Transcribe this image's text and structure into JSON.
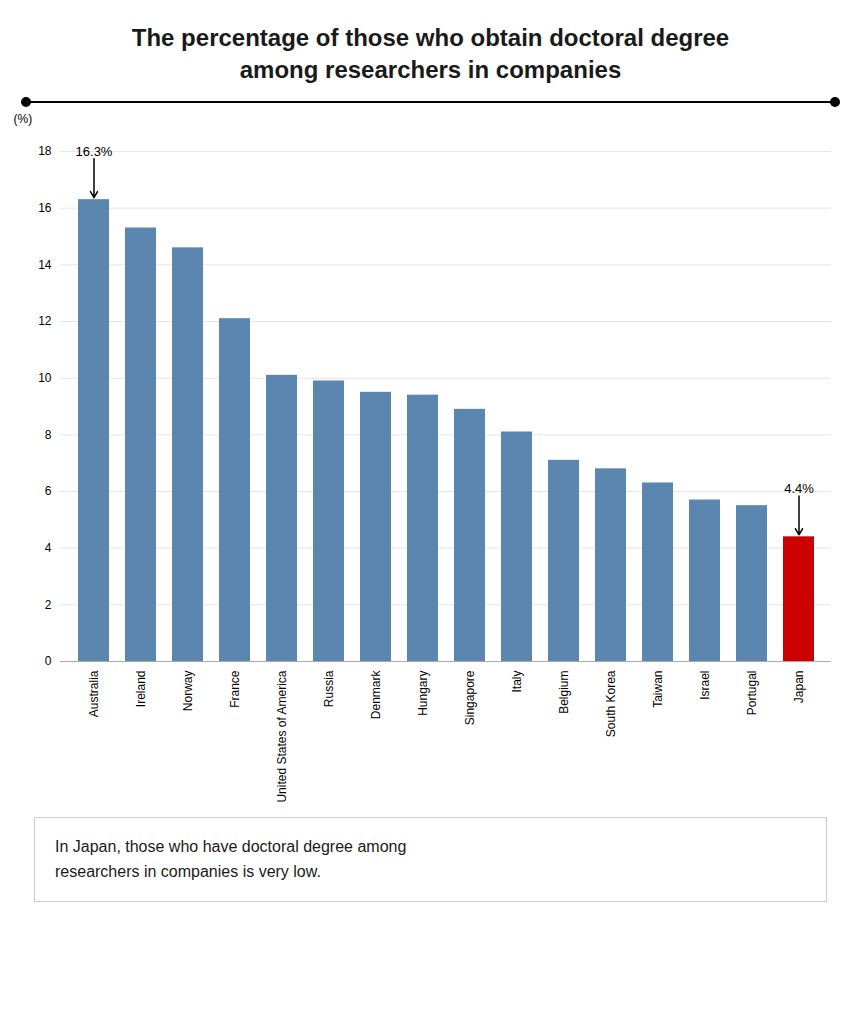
{
  "chart_data": {
    "type": "bar",
    "title": "The percentage of those who obtain doctoral degree\namong researchers in companies",
    "ylabel": "(%)",
    "categories": [
      "Australia",
      "Ireland",
      "Norway",
      "France",
      "United States of America",
      "Russia",
      "Denmark",
      "Hungary",
      "Singapore",
      "Italy",
      "Belgium",
      "South Korea",
      "Taiwan",
      "Israel",
      "Portugal",
      "Japan"
    ],
    "values": [
      16.3,
      15.3,
      14.6,
      12.1,
      10.1,
      9.9,
      9.5,
      9.4,
      8.9,
      8.1,
      7.1,
      6.8,
      6.3,
      5.7,
      5.5,
      4.4
    ],
    "colors": [
      "#5b86b0",
      "#5b86b0",
      "#5b86b0",
      "#5b86b0",
      "#5b86b0",
      "#5b86b0",
      "#5b86b0",
      "#5b86b0",
      "#5b86b0",
      "#5b86b0",
      "#5b86b0",
      "#5b86b0",
      "#5b86b0",
      "#5b86b0",
      "#5b86b0",
      "#cc0000"
    ],
    "ylim": [
      0,
      18
    ],
    "yticks": [
      0,
      2,
      4,
      6,
      8,
      10,
      12,
      14,
      16,
      18
    ],
    "grid": true,
    "annotations": [
      {
        "text": "16.3%",
        "category": "Australia",
        "value": 16.3
      },
      {
        "text": "4.4%",
        "category": "Japan",
        "value": 4.4
      }
    ],
    "note": "In Japan, those who have doctoral degree among\nresearchers in companies is very low."
  }
}
